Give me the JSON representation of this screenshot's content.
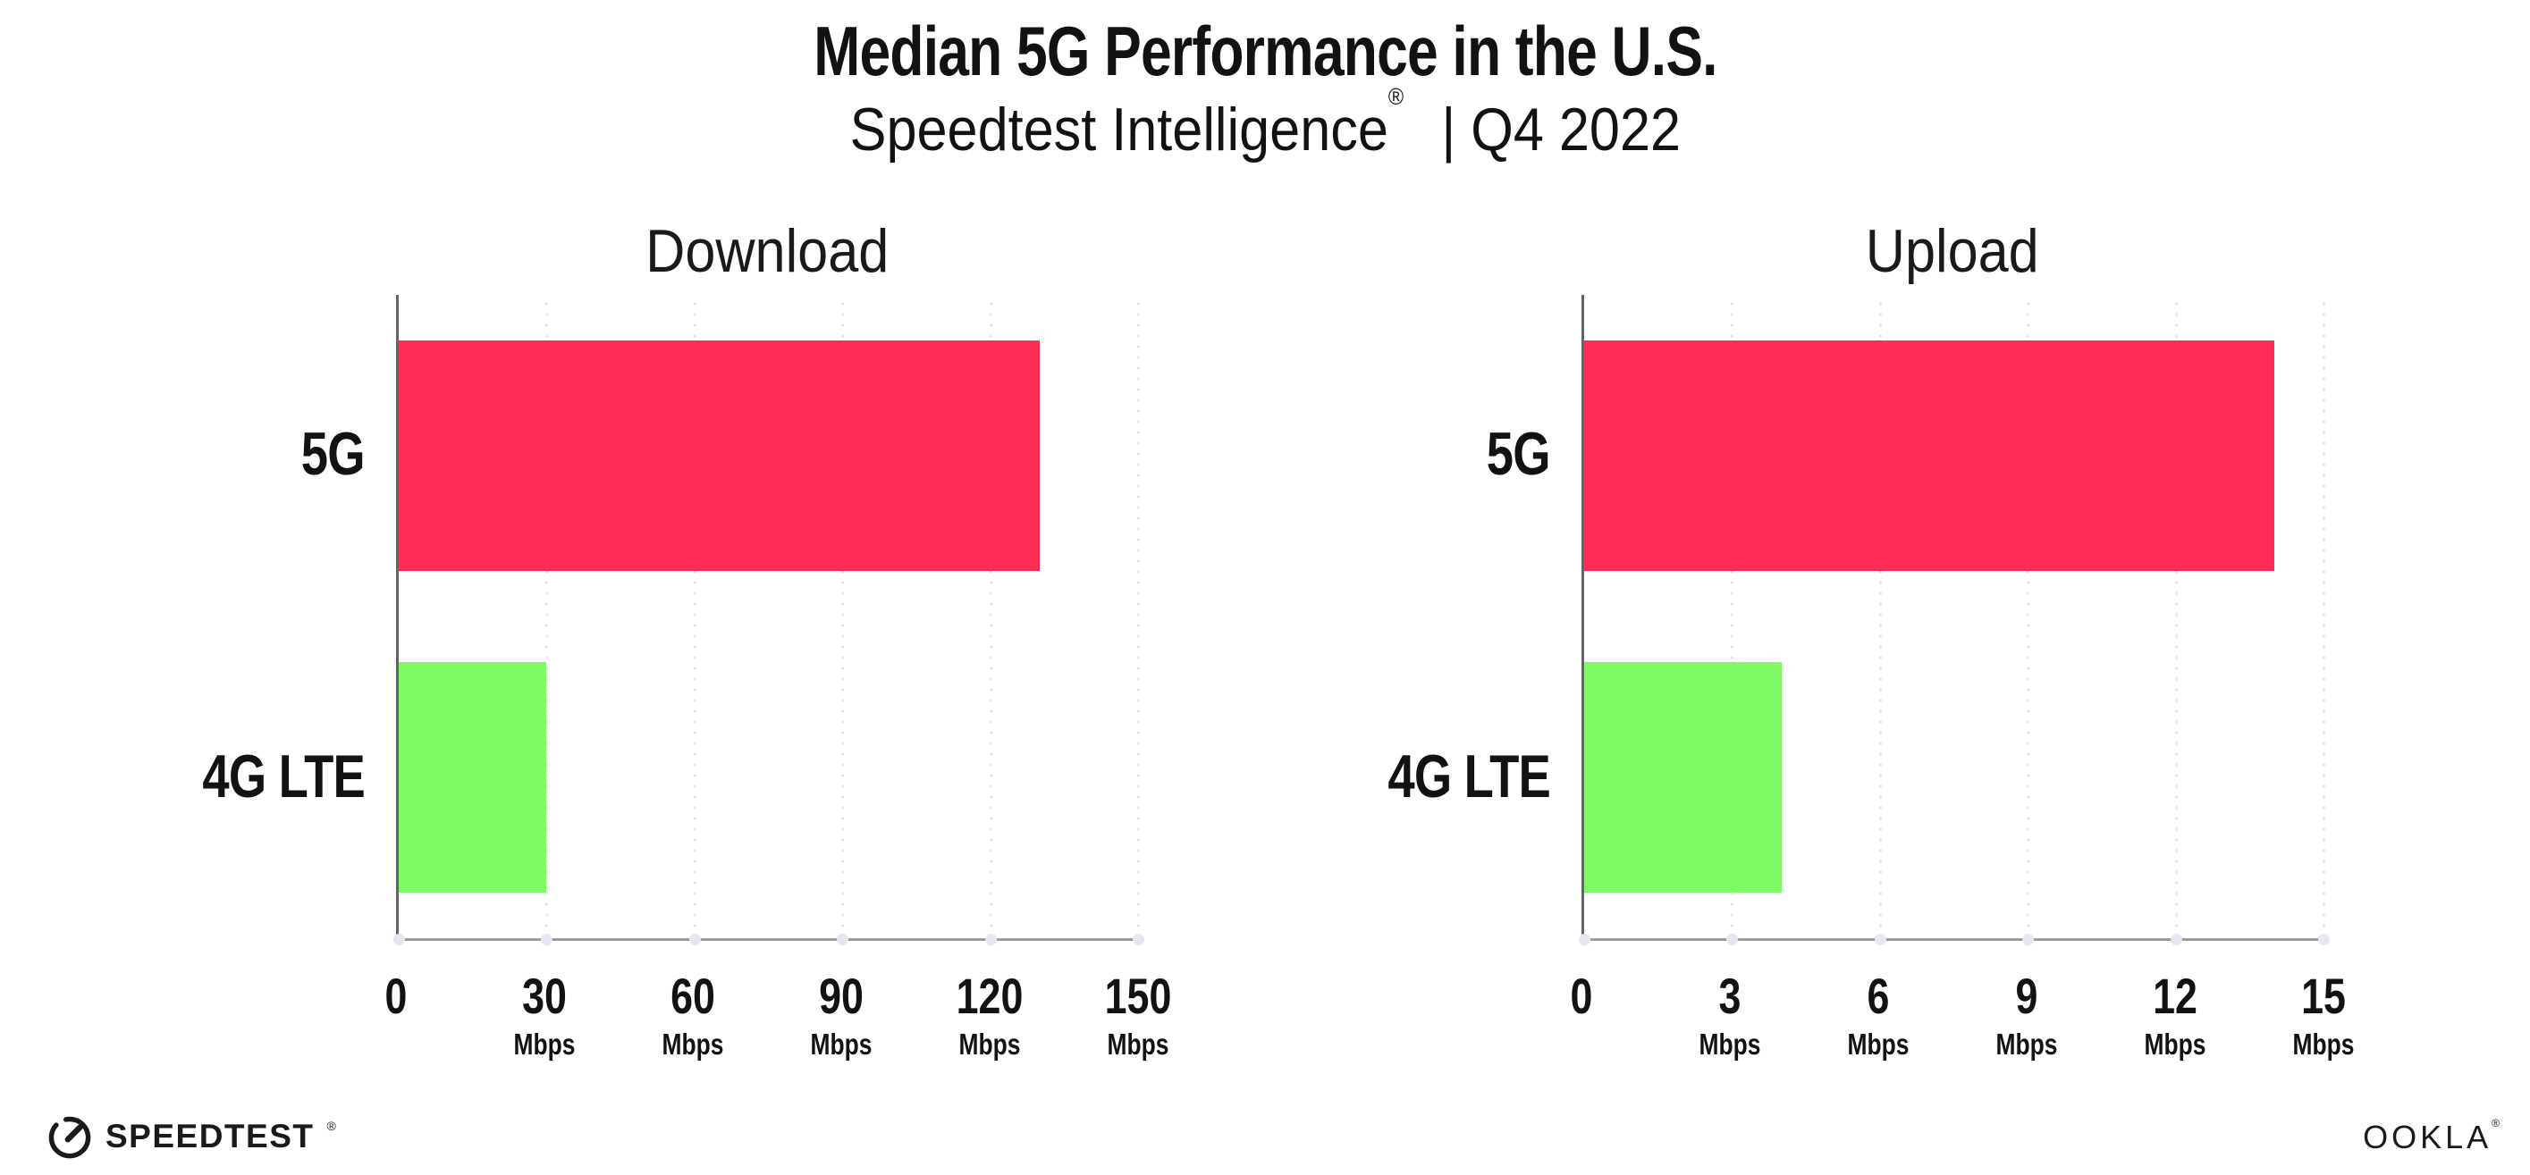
{
  "header": {
    "title": "Median 5G Performance in the U.S.",
    "subtitle_brand": "Speedtest Intelligence",
    "subtitle_reg": "®",
    "subtitle_rest": "| Q4 2022"
  },
  "chart_data": [
    {
      "type": "bar",
      "orientation": "horizontal",
      "title": "Download",
      "categories": [
        "5G",
        "4G LTE"
      ],
      "values": [
        130,
        30
      ],
      "unit": "Mbps",
      "xlim": [
        0,
        150
      ],
      "xticks": [
        0,
        30,
        60,
        90,
        120,
        150
      ],
      "bar_colors": [
        "#FF2E56",
        "#7EFB64"
      ],
      "grid": "dotted-vertical",
      "legend": "none"
    },
    {
      "type": "bar",
      "orientation": "horizontal",
      "title": "Upload",
      "categories": [
        "5G",
        "4G LTE"
      ],
      "values": [
        14,
        4
      ],
      "unit": "Mbps",
      "xlim": [
        0,
        15
      ],
      "xticks": [
        0,
        3,
        6,
        9,
        12,
        15
      ],
      "bar_colors": [
        "#FF2E56",
        "#7EFB64"
      ],
      "grid": "dotted-vertical",
      "legend": "none"
    }
  ],
  "footer": {
    "speedtest_label": "SPEEDTEST",
    "speedtest_reg": "®",
    "ookla_label": "OOKLA",
    "ookla_reg": "®"
  },
  "colors": {
    "bar_5g": "#FF2E56",
    "bar_4g_lte": "#7EFB64",
    "axis_y": "#63636e",
    "axis_x": "#9b9b9b",
    "grid_dot": "#e2e2ec",
    "tick_dot": "#e6e6f0",
    "text": "#121212"
  }
}
